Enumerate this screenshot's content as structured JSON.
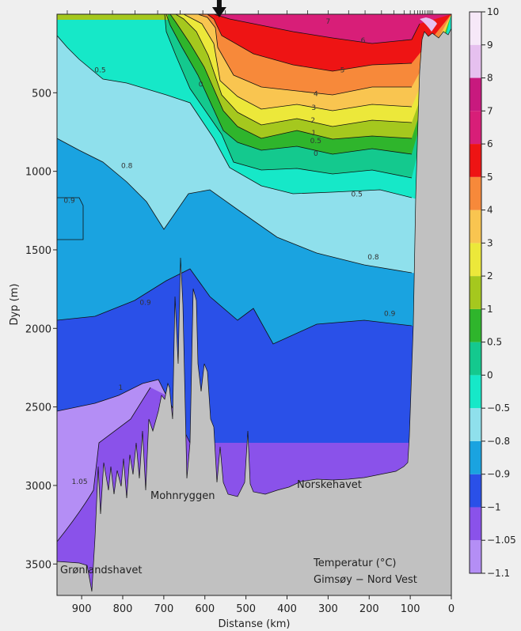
{
  "chart_data": {
    "type": "contour",
    "xlabel": "Distanse (km)",
    "ylabel": "Dyp (m)",
    "xlim": [
      960,
      0
    ],
    "ylim": [
      3700,
      0
    ],
    "x_reversed": true,
    "x_ticks": [
      900,
      800,
      700,
      600,
      500,
      400,
      300,
      200,
      100,
      0
    ],
    "y_ticks": [
      500,
      1000,
      1500,
      2000,
      2500,
      3000,
      3500
    ],
    "station_marker_km": 565,
    "annotation_title": "Temperatur (°C)",
    "annotation_section": "Gimsøy − Nord Vest",
    "regions": [
      "Grønlandshavet",
      "Mohnryggen",
      "Norskehavet"
    ],
    "colorbar": {
      "levels": [
        -1.1,
        -1.05,
        -1,
        -0.9,
        -0.8,
        -0.5,
        0,
        0.5,
        1,
        2,
        3,
        4,
        5,
        6,
        7,
        8,
        9,
        10
      ],
      "labels": [
        "−1.1",
        "−1.05",
        "−1",
        "−0.9",
        "−0.8",
        "−0.5",
        "0",
        "0.5",
        "1",
        "2",
        "3",
        "4",
        "5",
        "6",
        "7",
        "8",
        "9",
        "10"
      ],
      "colors": [
        "#b48ef5",
        "#8a52ea",
        "#2a50e8",
        "#1aa3e0",
        "#8fe0ec",
        "#16e8c8",
        "#14c98e",
        "#2fb52c",
        "#a5c81e",
        "#ece83a",
        "#f9c550",
        "#f7893a",
        "#ee1414",
        "#d81e78",
        "#c8197e",
        "#e6c0ef",
        "#f6e8f8"
      ]
    },
    "contour_labels": [
      {
        "text": "7",
        "x": 300,
        "y": 60
      },
      {
        "text": "6",
        "x": 215,
        "y": 180
      },
      {
        "text": "5",
        "x": 265,
        "y": 370
      },
      {
        "text": "4",
        "x": 330,
        "y": 520
      },
      {
        "text": "3",
        "x": 335,
        "y": 610
      },
      {
        "text": "2",
        "x": 337,
        "y": 690
      },
      {
        "text": "1",
        "x": 335,
        "y": 770
      },
      {
        "text": "0.5",
        "x": 330,
        "y": 820
      },
      {
        "text": "0",
        "x": 330,
        "y": 900
      },
      {
        "text": "0.5",
        "x": 855,
        "y": 370
      },
      {
        "text": "0",
        "x": 610,
        "y": 460
      },
      {
        "text": "0.5",
        "x": 230,
        "y": 1160
      },
      {
        "text": "0.8",
        "x": 790,
        "y": 980
      },
      {
        "text": "0.8",
        "x": 190,
        "y": 1560
      },
      {
        "text": "0.9",
        "x": 930,
        "y": 1200
      },
      {
        "text": "0.9",
        "x": 745,
        "y": 1850
      },
      {
        "text": "0.9",
        "x": 150,
        "y": 1920
      },
      {
        "text": "1",
        "x": 805,
        "y": 2390
      },
      {
        "text": "1.05",
        "x": 905,
        "y": 2990
      }
    ]
  }
}
